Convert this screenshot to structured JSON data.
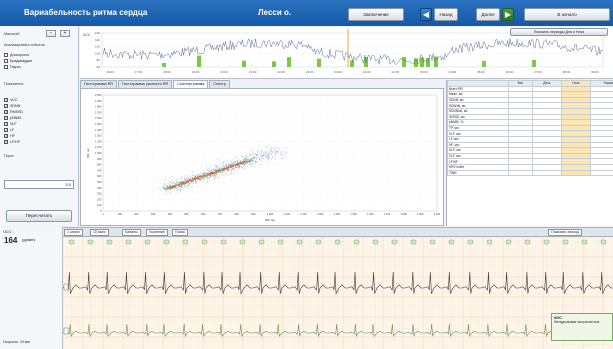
{
  "header": {
    "app_title": "Вариабельность ритма сердца",
    "patient": "Лесси о.",
    "conclusion_btn": "Заключение",
    "back_btn": "Назад",
    "forward_btn": "Далее",
    "start_btn": "В начало",
    "show_periods_btn": "Показать периоды Дня и Ночи"
  },
  "sidebar": {
    "top_label": "Масштаб",
    "zoom_minus": "−",
    "zoom_plus": "+",
    "events_label": "Анализировать события",
    "options": [
      {
        "label": "Доскорость",
        "checked": false
      },
      {
        "label": "Брадикардия",
        "checked": false
      },
      {
        "label": "Паузы",
        "checked": false
      }
    ],
    "params_label": "Показатели",
    "params": [
      {
        "label": "ЧСС",
        "checked": true
      },
      {
        "label": "SDNN",
        "checked": true
      },
      {
        "label": "RMSSD",
        "checked": true
      },
      {
        "label": "pNN50",
        "checked": true
      },
      {
        "label": "VLF",
        "checked": true
      },
      {
        "label": "LF",
        "checked": true
      },
      {
        "label": "HF",
        "checked": true
      },
      {
        "label": "LF/HF",
        "checked": true
      }
    ],
    "threshold_label": "Порог",
    "threshold_value": "5.0",
    "recalc_btn": "Пересчитать"
  },
  "trend": {
    "y_label": "ЧСС",
    "y_ticks": [
      "160",
      "140",
      "120",
      "100",
      "80",
      "60"
    ],
    "x_ticks": [
      "16:00",
      "17:00",
      "18:00",
      "19:00",
      "20:00",
      "21:00",
      "22:00",
      "23:00",
      "00:00",
      "01:00",
      "02:00",
      "03:00",
      "04:00",
      "05:00",
      "06:00",
      "07:00",
      "08:00",
      "09:00"
    ]
  },
  "tabs": [
    "Гистограмма RR",
    "Гистограмма разности RR",
    "Скаттерграмма",
    "Спектр"
  ],
  "active_tab": 2,
  "scatter": {
    "y_label": "RR, мс",
    "x_label": "RR, мс",
    "y_ticks": [
      "2 000",
      "1 900",
      "1 800",
      "1 700",
      "1 600",
      "1 500",
      "1 400",
      "1 300",
      "1 200",
      "1 100",
      "1 000",
      "900",
      "800",
      "700",
      "600",
      "500",
      "400",
      "300",
      "200",
      "100",
      "0"
    ],
    "x_ticks": [
      "0",
      "100",
      "200",
      "300",
      "400",
      "500",
      "600",
      "700",
      "800",
      "900",
      "1 000",
      "1 100",
      "1 200",
      "1 300",
      "1 400",
      "1 500",
      "1 600",
      "1 700",
      "1 800",
      "1 900",
      "2 000"
    ]
  },
  "stats": {
    "columns": [
      "",
      "Все",
      "День",
      "Ночь",
      "Норма"
    ],
    "rows": [
      [
        "Всего RR",
        "",
        "",
        "",
        ""
      ],
      [
        "Mean, мс",
        "",
        "",
        "",
        ""
      ],
      [
        "SDNN, мс",
        "",
        "",
        "",
        ""
      ],
      [
        "SDANN, мс",
        "",
        "",
        "",
        ""
      ],
      [
        "SDNNidx, мс",
        "",
        "",
        "",
        ""
      ],
      [
        "rMSSD, мс",
        "",
        "",
        "",
        ""
      ],
      [
        "pNN50, %",
        "",
        "",
        "",
        ""
      ],
      [
        "TP, мс²",
        "",
        "",
        "",
        ""
      ],
      [
        "VLF, мс²",
        "",
        "",
        "",
        ""
      ],
      [
        "LF, мс²",
        "",
        "",
        "",
        ""
      ],
      [
        "HF, мс²",
        "",
        "",
        "",
        ""
      ],
      [
        "ULF, мс²",
        "",
        "",
        "",
        ""
      ],
      [
        "VLF, мс²",
        "",
        "",
        "",
        ""
      ],
      [
        "LF/HF",
        "",
        "",
        "",
        ""
      ],
      [
        "HRV index",
        "",
        "",
        "",
        ""
      ],
      [
        "TINN",
        "",
        "",
        "",
        ""
      ]
    ]
  },
  "ecg": {
    "hr_label": "ЧСС:",
    "hr_value": "164",
    "hr_unit": "(уд/мин)",
    "controls": [
      "1 канал",
      "10 мм/с",
      "Каналы",
      "Усиление",
      "Поиск"
    ],
    "show_button": "Показать эпизод",
    "speed_label": "Скорость: 10 мм"
  },
  "popup": {
    "title": "ЖЭС",
    "text": "Желудочковая экстрасистола"
  },
  "colors": {
    "header_blue": "#1d62b0",
    "ecg_bg": "#fff6ea",
    "scatter_core": "#e8592a",
    "scatter_mid": "#2e9b4a",
    "scatter_outer": "#2c4f9e",
    "trend_bars": "#7ac943"
  }
}
